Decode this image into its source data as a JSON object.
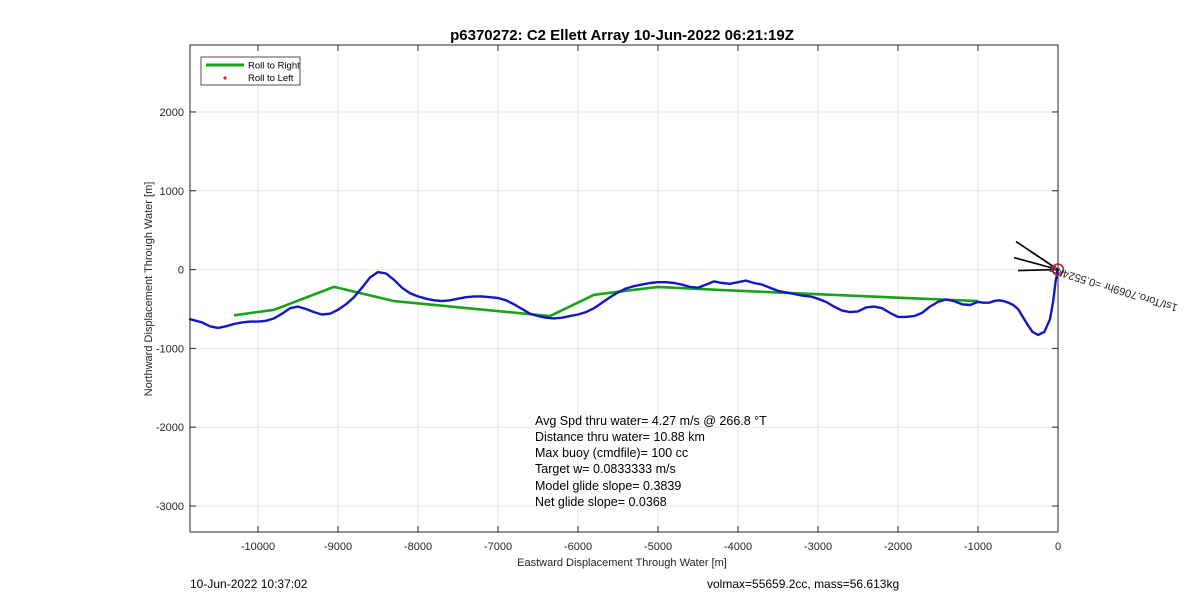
{
  "chart_data": {
    "type": "line",
    "title": "p6370272: C2 Ellett Array 10-Jun-2022 06:21:19Z",
    "xlabel": "Eastward Displacement Through Water [m]",
    "ylabel": "Northward Displacement Through Water [m]",
    "xlim": [
      -10850,
      0
    ],
    "ylim": [
      -3330,
      2850
    ],
    "xticks": [
      -10000,
      -9000,
      -8000,
      -7000,
      -6000,
      -5000,
      -4000,
      -3000,
      -2000,
      -1000,
      0
    ],
    "yticks": [
      -3000,
      -2000,
      -1000,
      0,
      1000,
      2000
    ],
    "grid": true,
    "legend_position": "top-left",
    "legend": [
      {
        "label": "Roll to Right",
        "color": "#1aa31a",
        "style": "line"
      },
      {
        "label": "Roll to Left",
        "color": "#e02020",
        "style": "dot"
      }
    ],
    "series": [
      {
        "name": "track",
        "color": "#1515c8",
        "x": [
          0,
          -30,
          -60,
          -100,
          -170,
          -250,
          -320,
          -380,
          -440,
          -500,
          -560,
          -620,
          -680,
          -740,
          -800,
          -860,
          -930,
          -1000,
          -1100,
          -1200,
          -1300,
          -1400,
          -1500,
          -1600,
          -1700,
          -1800,
          -1900,
          -2000,
          -2100,
          -2200,
          -2300,
          -2400,
          -2500,
          -2600,
          -2700,
          -2800,
          -2900,
          -3000,
          -3100,
          -3200,
          -3300,
          -3400,
          -3500,
          -3600,
          -3700,
          -3800,
          -3900,
          -4000,
          -4100,
          -4200,
          -4300,
          -4400,
          -4500,
          -4600,
          -4700,
          -4800,
          -4900,
          -5000,
          -5100,
          -5200,
          -5300,
          -5400,
          -5500,
          -5600,
          -5700,
          -5800,
          -5900,
          -6000,
          -6100,
          -6200,
          -6300,
          -6400,
          -6500,
          -6600,
          -6700,
          -6800,
          -6900,
          -7000,
          -7100,
          -7200,
          -7300,
          -7400,
          -7500,
          -7600,
          -7700,
          -7800,
          -7900,
          -8000,
          -8100,
          -8200,
          -8300,
          -8400,
          -8500,
          -8600,
          -8700,
          -8800,
          -8900,
          -9000,
          -9100,
          -9200,
          -9300,
          -9400,
          -9500,
          -9600,
          -9700,
          -9800,
          -9900,
          -10000,
          -10100,
          -10200,
          -10300,
          -10400,
          -10500,
          -10600,
          -10700,
          -10850
        ],
        "y": [
          0,
          -150,
          -400,
          -630,
          -790,
          -830,
          -790,
          -700,
          -600,
          -500,
          -450,
          -420,
          -400,
          -390,
          -400,
          -420,
          -420,
          -410,
          -450,
          -440,
          -400,
          -380,
          -410,
          -470,
          -550,
          -590,
          -600,
          -600,
          -550,
          -490,
          -470,
          -480,
          -530,
          -540,
          -520,
          -470,
          -410,
          -370,
          -340,
          -330,
          -310,
          -290,
          -270,
          -230,
          -190,
          -170,
          -140,
          -160,
          -180,
          -170,
          -150,
          -190,
          -230,
          -220,
          -190,
          -170,
          -160,
          -160,
          -170,
          -190,
          -210,
          -240,
          -290,
          -350,
          -420,
          -490,
          -540,
          -570,
          -590,
          -610,
          -620,
          -610,
          -590,
          -560,
          -500,
          -440,
          -390,
          -360,
          -350,
          -340,
          -340,
          -350,
          -370,
          -390,
          -400,
          -390,
          -370,
          -340,
          -300,
          -230,
          -130,
          -50,
          -30,
          -100,
          -230,
          -350,
          -440,
          -510,
          -560,
          -570,
          -540,
          -500,
          -470,
          -490,
          -560,
          -620,
          -650,
          -660,
          -660,
          -670,
          -690,
          -720,
          -740,
          -720,
          -670,
          -630
        ]
      },
      {
        "name": "Roll to Right",
        "color": "#1aa31a",
        "x": [
          -10300,
          -9800,
          -9050,
          -8300,
          -6350,
          -5800,
          -5000,
          -4200,
          -1000
        ],
        "y": [
          -580,
          -510,
          -220,
          -400,
          -590,
          -320,
          -220,
          -260,
          -400
        ]
      }
    ],
    "heading_markers": {
      "label": "1st/Toro.7069hr =0.5524km",
      "rotation_deg": 17,
      "x": [
        0
      ],
      "y": [
        0
      ]
    },
    "annotations": [
      "Avg Spd thru water=  4.27 m/s @ 266.8 °T",
      "Distance thru water= 10.88 km",
      "Max buoy (cmdfile)= 100 cc",
      "Target w= 0.0833333 m/s",
      "Model glide slope= 0.3839",
      "Net glide slope= 0.0368"
    ]
  },
  "footer": {
    "left": "10-Jun-2022 10:37:02",
    "right": "volmax=55659.2cc, mass=56.613kg"
  }
}
